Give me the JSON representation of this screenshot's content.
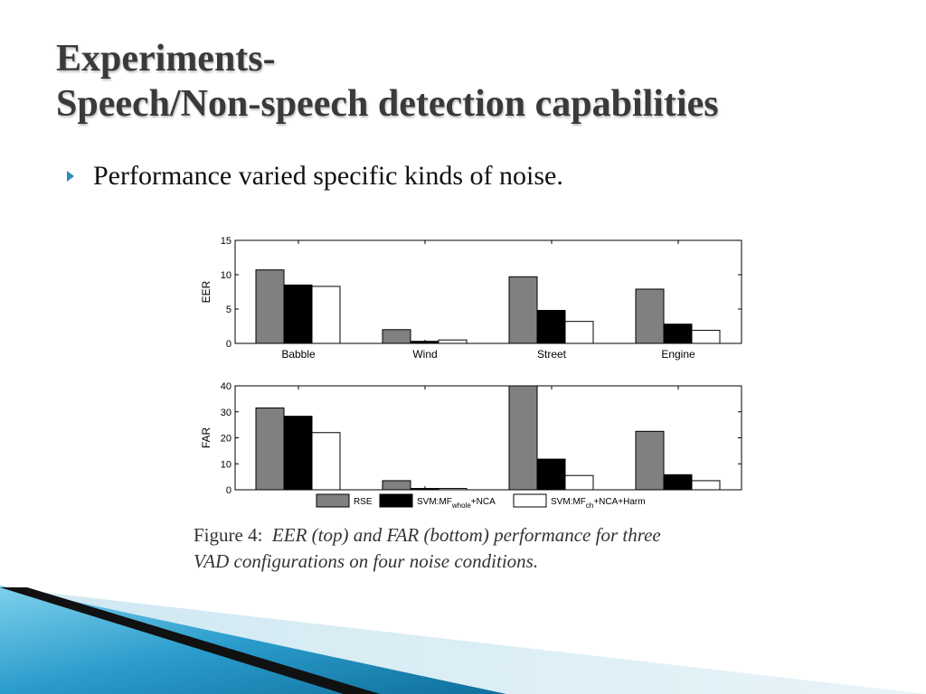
{
  "slide": {
    "title_line1": "Experiments-",
    "title_line2": "Speech/Non-speech detection capabilities",
    "bullet": "Performance varied specific kinds of noise."
  },
  "caption": {
    "label": "Figure 4:",
    "text_line1": "EER (top) and FAR (bottom) performance for three",
    "text_line2": "VAD configurations on four noise conditions."
  },
  "colors": {
    "bullet": "#2f8db5",
    "rse": "#808080",
    "svm_whole": "#000000",
    "svm_ch": "#ffffff",
    "deco_blue": "#2aa0c8"
  },
  "chart_data": [
    {
      "type": "bar",
      "ylabel": "EER",
      "categories": [
        "Babble",
        "Wind",
        "Street",
        "Engine"
      ],
      "ylim": [
        0,
        15
      ],
      "yticks": [
        0,
        5,
        10,
        15
      ],
      "series": [
        {
          "name": "RSE",
          "values": [
            10.7,
            2.0,
            9.7,
            7.9
          ]
        },
        {
          "name": "SVM:MF_whole+NCA",
          "values": [
            8.5,
            0.3,
            4.8,
            2.8
          ]
        },
        {
          "name": "SVM:MF_ch+NCA+Harm",
          "values": [
            8.3,
            0.5,
            3.2,
            1.9
          ]
        }
      ]
    },
    {
      "type": "bar",
      "ylabel": "FAR",
      "categories": [
        "Babble",
        "Wind",
        "Street",
        "Engine"
      ],
      "ylim": [
        0,
        40
      ],
      "yticks": [
        0,
        10,
        20,
        30,
        40
      ],
      "series": [
        {
          "name": "RSE",
          "values": [
            31.5,
            3.5,
            40,
            22.5
          ]
        },
        {
          "name": "SVM:MF_whole+NCA",
          "values": [
            28.3,
            0.5,
            11.8,
            5.8
          ]
        },
        {
          "name": "SVM:MF_ch+NCA+Harm",
          "values": [
            22.0,
            0.5,
            5.5,
            3.5
          ]
        }
      ]
    }
  ],
  "legend": {
    "items": [
      {
        "base": "RSE",
        "sub": "",
        "tail": ""
      },
      {
        "base": "SVM:MF",
        "sub": "whole",
        "tail": "+NCA"
      },
      {
        "base": "SVM:MF",
        "sub": "ch",
        "tail": "+NCA+Harm"
      }
    ]
  }
}
